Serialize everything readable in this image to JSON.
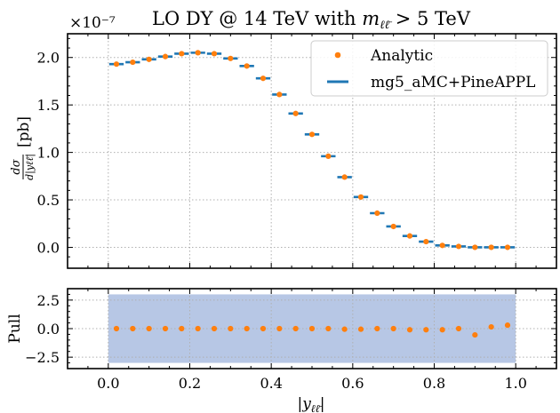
{
  "chart_data": [
    {
      "type": "scatter",
      "title": "LO DY @ 14 TeV with m_{ℓℓ̄} > 5 TeV",
      "ylabel": "dσ/d|y_{ℓℓ̄}| [pb]",
      "scale_label": "×10⁻⁷",
      "xlim": [
        -0.1,
        1.1
      ],
      "ylim": [
        -0.22,
        2.25
      ],
      "yticks": [
        0.0,
        0.5,
        1.0,
        1.5,
        2.0
      ],
      "ytick_labels": [
        "0.0",
        "0.5",
        "1.0",
        "1.5",
        "2.0"
      ],
      "grid": true,
      "legend_position": "top-right",
      "bin_width": 0.04,
      "x": [
        0.02,
        0.06,
        0.1,
        0.14,
        0.18,
        0.22,
        0.26,
        0.3,
        0.34,
        0.38,
        0.42,
        0.46,
        0.5,
        0.54,
        0.58,
        0.62,
        0.66,
        0.7,
        0.74,
        0.78,
        0.82,
        0.86,
        0.9,
        0.94,
        0.98
      ],
      "series": [
        {
          "name": "Analytic",
          "style": "points",
          "color": "#ff7f0e",
          "values": [
            1.93,
            1.95,
            1.98,
            2.01,
            2.04,
            2.05,
            2.04,
            1.99,
            1.91,
            1.78,
            1.61,
            1.41,
            1.19,
            0.96,
            0.74,
            0.53,
            0.36,
            0.22,
            0.12,
            0.06,
            0.02,
            0.01,
            0.0,
            0.0,
            0.0
          ]
        },
        {
          "name": "mg5_aMC+PineAPPL",
          "style": "bins",
          "color": "#1f77b4",
          "values": [
            1.93,
            1.95,
            1.98,
            2.01,
            2.04,
            2.05,
            2.04,
            1.99,
            1.91,
            1.78,
            1.61,
            1.41,
            1.19,
            0.96,
            0.74,
            0.53,
            0.36,
            0.22,
            0.12,
            0.06,
            0.02,
            0.01,
            0.0,
            0.0,
            0.0
          ]
        }
      ]
    },
    {
      "type": "scatter",
      "xlabel": "|y_{ℓℓ̄}|",
      "ylabel": "Pull",
      "xlim": [
        -0.1,
        1.1
      ],
      "ylim": [
        -3.5,
        3.5
      ],
      "xticks": [
        0.0,
        0.2,
        0.4,
        0.6,
        0.8,
        1.0
      ],
      "xtick_labels": [
        "0.0",
        "0.2",
        "0.4",
        "0.6",
        "0.8",
        "1.0"
      ],
      "yticks": [
        -2.5,
        0.0,
        2.5
      ],
      "ytick_labels": [
        "−2.5",
        "0.0",
        "2.5"
      ],
      "grid": true,
      "band": {
        "x": [
          0.0,
          1.0
        ],
        "y": [
          -3.0,
          3.0
        ],
        "color": "#b7c7e5"
      },
      "series": [
        {
          "name": "Pull",
          "color": "#ff7f0e",
          "x": [
            0.02,
            0.06,
            0.1,
            0.14,
            0.18,
            0.22,
            0.26,
            0.3,
            0.34,
            0.38,
            0.42,
            0.46,
            0.5,
            0.54,
            0.58,
            0.62,
            0.66,
            0.7,
            0.74,
            0.78,
            0.82,
            0.86,
            0.9,
            0.94,
            0.98
          ],
          "values": [
            0.0,
            0.0,
            0.0,
            0.0,
            0.0,
            0.0,
            0.0,
            0.0,
            0.0,
            0.0,
            0.0,
            0.0,
            0.0,
            0.0,
            -0.05,
            -0.05,
            0.0,
            0.0,
            -0.1,
            -0.1,
            -0.1,
            0.0,
            -0.55,
            0.15,
            0.3
          ]
        }
      ]
    }
  ],
  "legend": {
    "items": [
      {
        "label": "Analytic",
        "marker": "point",
        "color": "#ff7f0e"
      },
      {
        "label": "mg5_aMC+PineAPPL",
        "marker": "line",
        "color": "#1f77b4"
      }
    ]
  }
}
